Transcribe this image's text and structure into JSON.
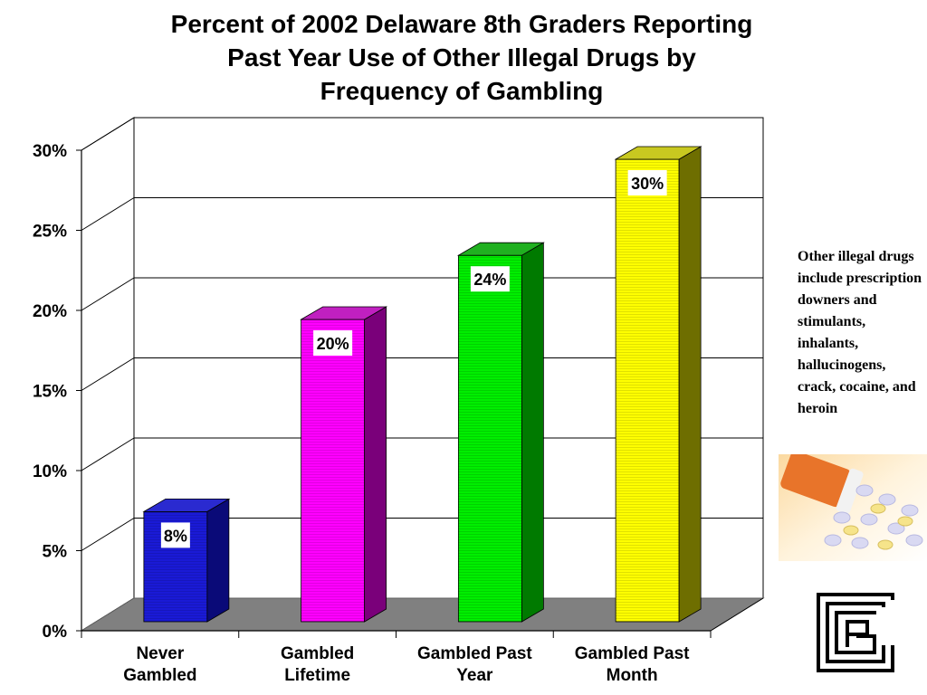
{
  "title_lines": [
    "Percent of 2002 Delaware 8th Graders Reporting",
    "Past Year Use of Other Illegal Drugs by",
    "Frequency of Gambling"
  ],
  "note": "Other illegal drugs include prescription downers and stimulants, inhalants, hallucinogens, crack, cocaine, and heroin",
  "chart_data": {
    "type": "bar",
    "title": "Percent of 2002 Delaware 8th Graders Reporting Past Year Use of Other Illegal Drugs by Frequency of Gambling",
    "categories": [
      [
        "Never",
        "Gambled"
      ],
      [
        "Gambled",
        "Lifetime"
      ],
      [
        "Gambled Past",
        "Year"
      ],
      [
        "Gambled Past",
        "Month"
      ]
    ],
    "values": [
      8,
      20,
      24,
      30
    ],
    "data_labels": [
      "8%",
      "20%",
      "24%",
      "30%"
    ],
    "ylim": [
      0,
      30
    ],
    "yticks": [
      0,
      5,
      10,
      15,
      20,
      25,
      30
    ],
    "ytick_labels": [
      "0%",
      "5%",
      "10%",
      "15%",
      "20%",
      "25%",
      "30%"
    ],
    "xlabel": "",
    "ylabel": "",
    "grid": true,
    "style": "3d",
    "colors": [
      "#1a1ad6",
      "#ff00ff",
      "#00ee00",
      "#ffff00"
    ],
    "side_colors": [
      "#0a0a78",
      "#7a007a",
      "#007a00",
      "#6e6e00"
    ],
    "top_colors": [
      "#2a2ad0",
      "#c020c0",
      "#20b020",
      "#c8c820"
    ]
  }
}
